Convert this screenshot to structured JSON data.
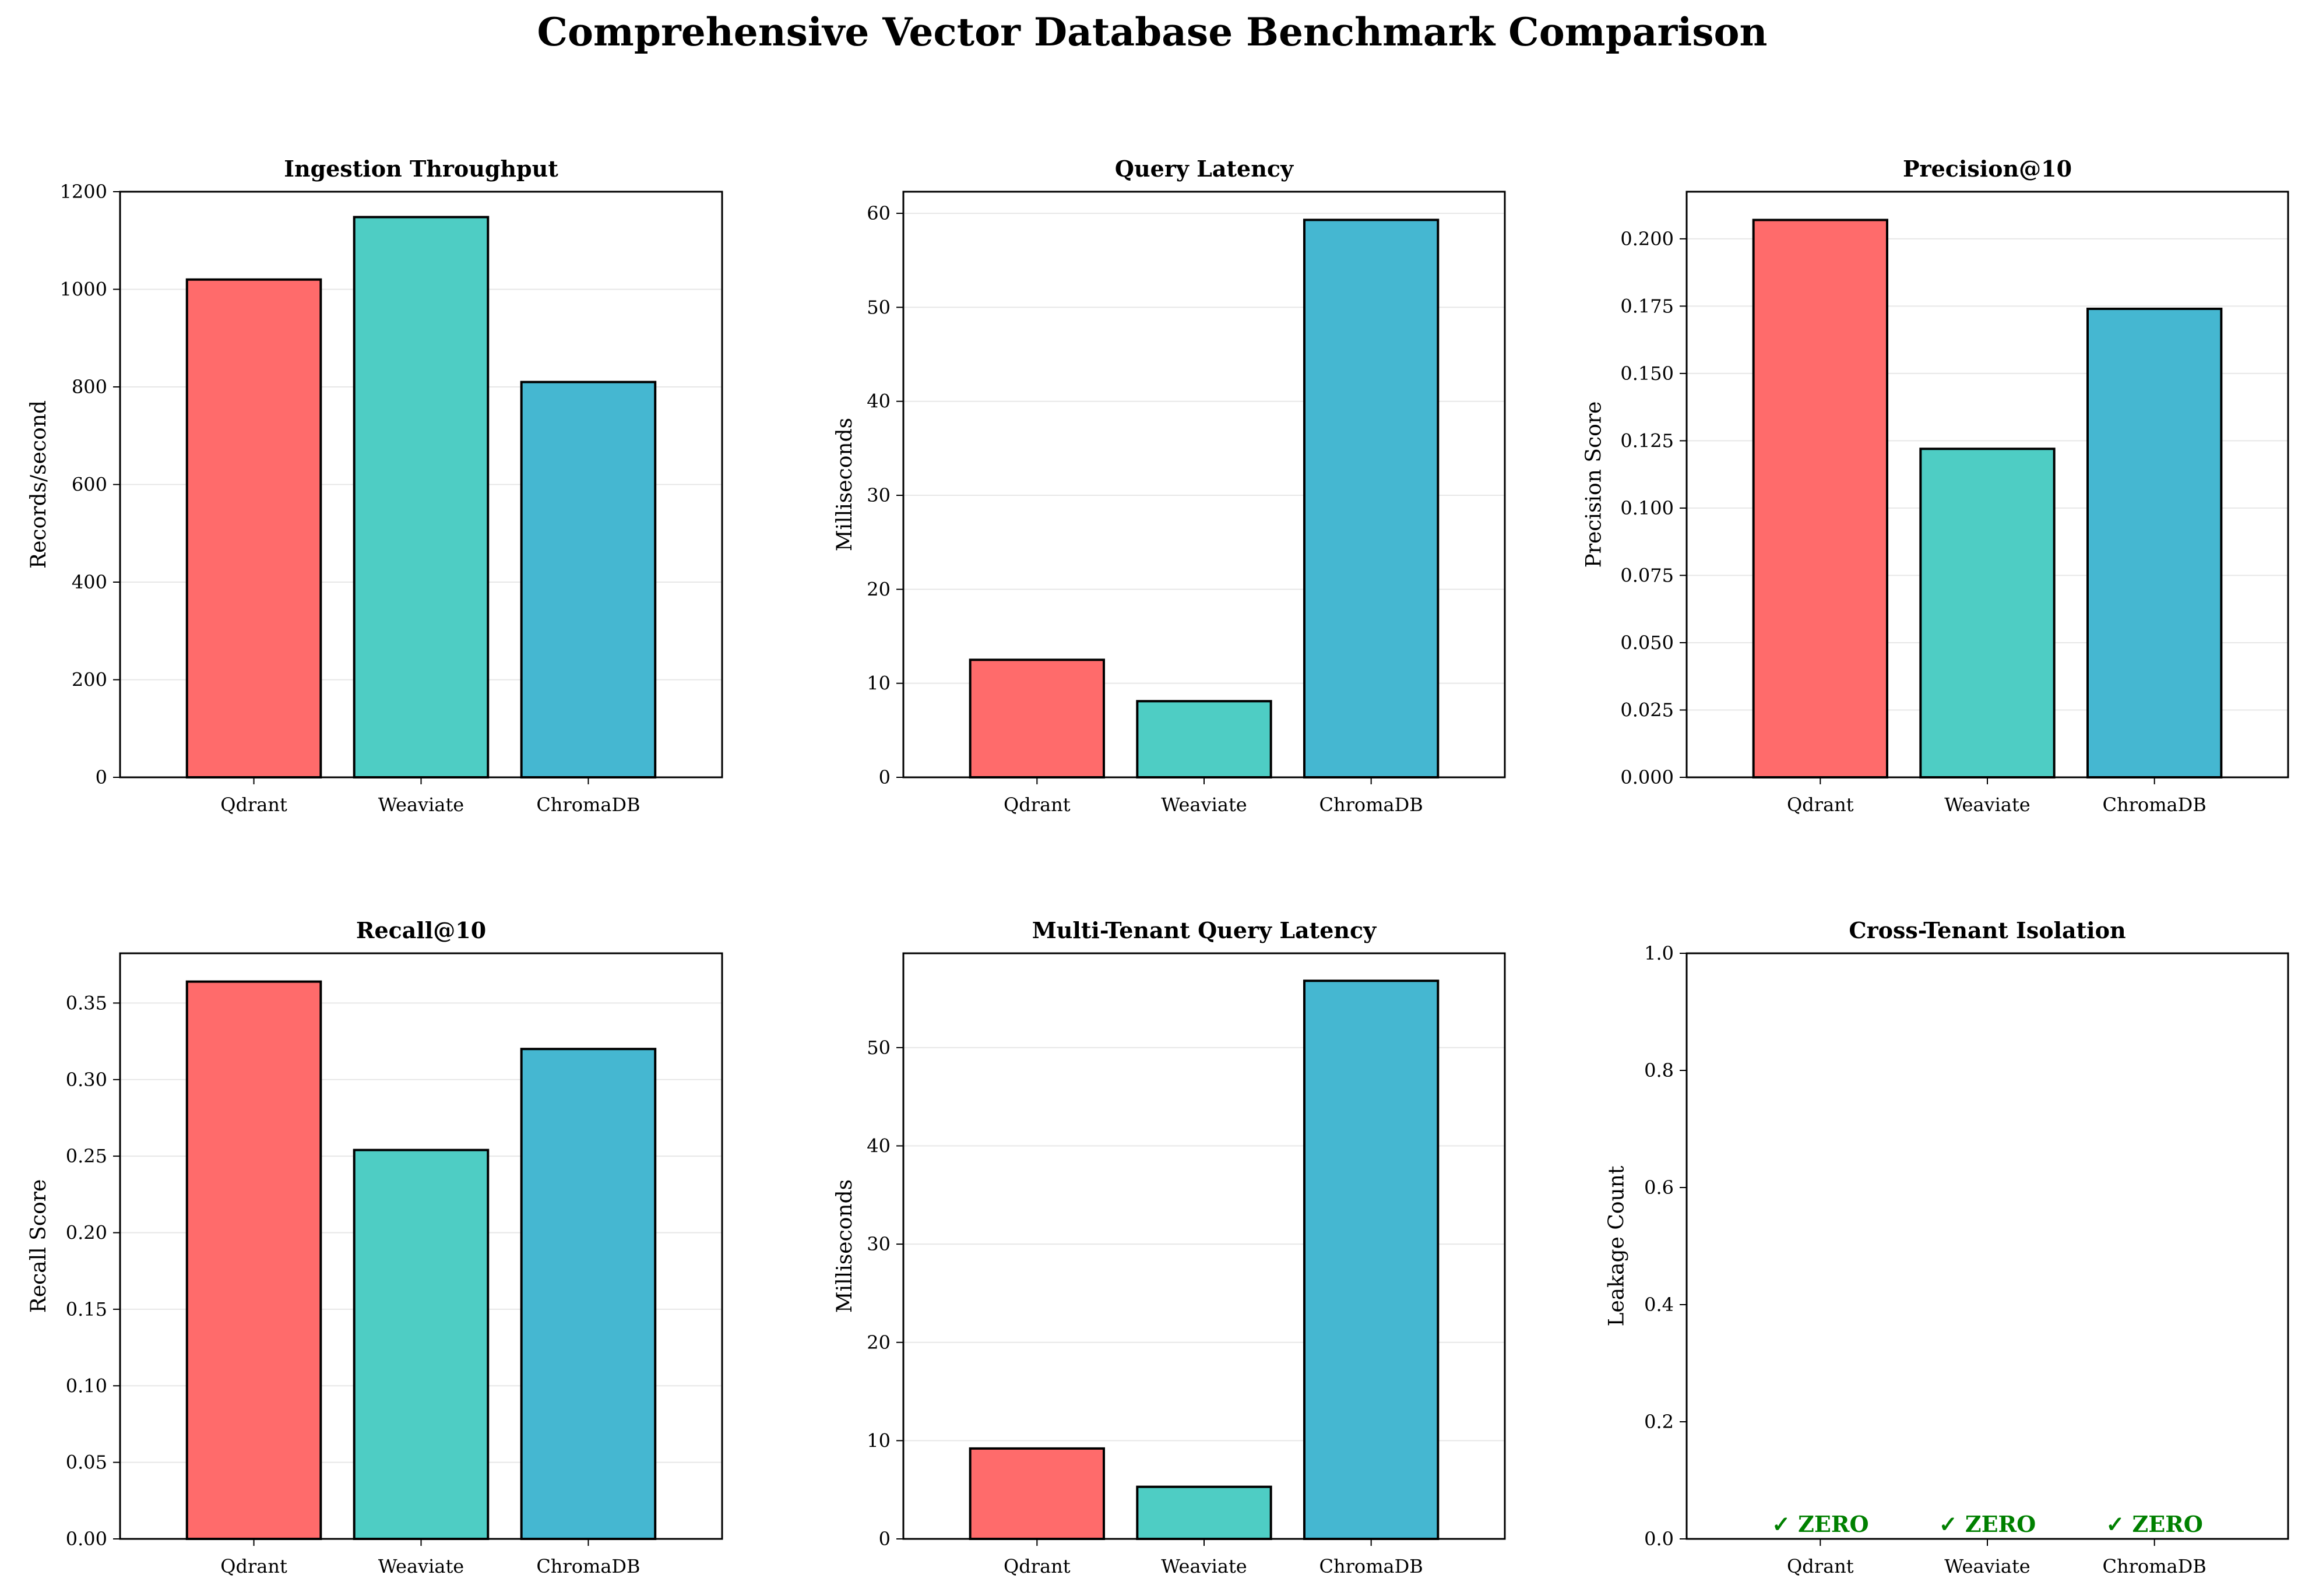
{
  "title": "Comprehensive Vector Database Benchmark Comparison",
  "colors": [
    "#FF6B6B",
    "#4ECDC4",
    "#45B7D1"
  ],
  "chart_data": [
    {
      "type": "bar",
      "title": "Ingestion Throughput",
      "ylabel": "Records/second",
      "categories": [
        "Qdrant",
        "Weaviate",
        "ChromaDB"
      ],
      "values": [
        1020,
        1148,
        810
      ],
      "ylim": [
        0,
        1200
      ],
      "yticks": [
        "0",
        "200",
        "400",
        "600",
        "800",
        "1000",
        "1200"
      ],
      "grid": true
    },
    {
      "type": "bar",
      "title": "Query Latency",
      "ylabel": "Milliseconds",
      "categories": [
        "Qdrant",
        "Weaviate",
        "ChromaDB"
      ],
      "values": [
        12.5,
        8.1,
        59.3
      ],
      "ylim": [
        0,
        62.3
      ],
      "yticks": [
        "0",
        "10",
        "20",
        "30",
        "40",
        "50",
        "60"
      ],
      "grid": true
    },
    {
      "type": "bar",
      "title": "Precision@10",
      "ylabel": "Precision Score",
      "categories": [
        "Qdrant",
        "Weaviate",
        "ChromaDB"
      ],
      "values": [
        0.207,
        0.122,
        0.174
      ],
      "ylim": [
        0,
        0.2175
      ],
      "yticks": [
        "0.000",
        "0.025",
        "0.050",
        "0.075",
        "0.100",
        "0.125",
        "0.150",
        "0.175",
        "0.200"
      ],
      "grid": true
    },
    {
      "type": "bar",
      "title": "Recall@10",
      "ylabel": "Recall Score",
      "categories": [
        "Qdrant",
        "Weaviate",
        "ChromaDB"
      ],
      "values": [
        0.364,
        0.254,
        0.32
      ],
      "ylim": [
        0,
        0.3825
      ],
      "yticks": [
        "0.00",
        "0.05",
        "0.10",
        "0.15",
        "0.20",
        "0.25",
        "0.30",
        "0.35"
      ],
      "grid": true
    },
    {
      "type": "bar",
      "title": "Multi-Tenant Query Latency",
      "ylabel": "Milliseconds",
      "categories": [
        "Qdrant",
        "Weaviate",
        "ChromaDB"
      ],
      "values": [
        9.2,
        5.3,
        56.8
      ],
      "ylim": [
        0,
        59.6
      ],
      "yticks": [
        "0",
        "10",
        "20",
        "30",
        "40",
        "50"
      ],
      "grid": true
    },
    {
      "type": "bar",
      "title": "Cross-Tenant Isolation",
      "ylabel": "Leakage Count",
      "categories": [
        "Qdrant",
        "Weaviate",
        "ChromaDB"
      ],
      "values": [
        0,
        0,
        0
      ],
      "ylim": [
        0,
        1
      ],
      "yticks": [
        "0.0",
        "0.2",
        "0.4",
        "0.6",
        "0.8",
        "1.0"
      ],
      "grid": false,
      "bar_labels": [
        "✓ ZERO",
        "✓ ZERO",
        "✓ ZERO"
      ]
    }
  ]
}
